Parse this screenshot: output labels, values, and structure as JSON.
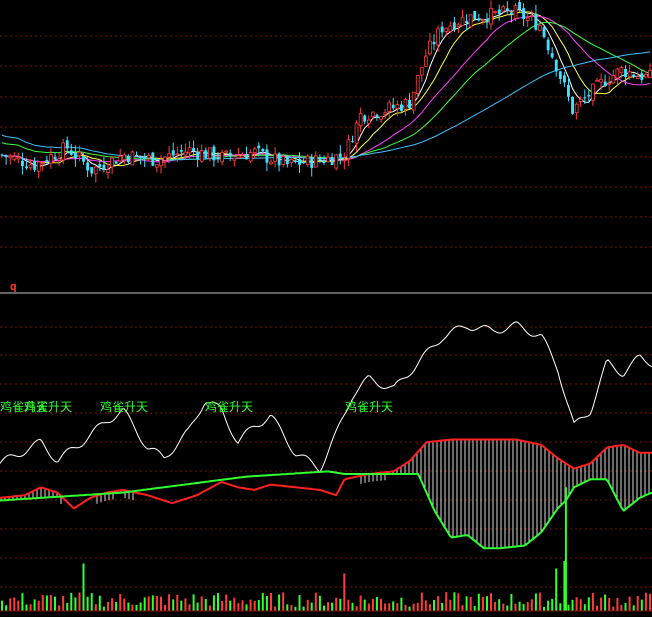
{
  "panel_labels": {
    "indicator_panel": "q"
  },
  "annotations": [
    "鸡雀升天",
    "鸡雀升天",
    "鸡雀升天",
    "鸡雀升天",
    "鸡雀升天"
  ],
  "colors": {
    "background": "#000000",
    "grid": "#7a1010",
    "divider": "#c8c8c8",
    "candle_up": "#ff3c3c",
    "candle_down": "#40e0ff",
    "ma5": "#ffffff",
    "ma10": "#ffff40",
    "ma20": "#ff40ff",
    "ma30": "#40ff40",
    "ma60": "#40c0ff",
    "indicator_white": "#ffffff",
    "indicator_red": "#ff2020",
    "indicator_green": "#30ff30",
    "annotation_text": "#30ff30",
    "volume_up": "#ff3c3c",
    "volume_down": "#30ff30"
  },
  "chart_data": [
    {
      "type": "candlestick",
      "panel": "price",
      "bar_count": 160,
      "series": [
        {
          "name": "",
          "style": "candlestick"
        },
        {
          "name": "",
          "style": "line",
          "color_key": "ma5"
        },
        {
          "name": "",
          "style": "line",
          "color_key": "ma10"
        },
        {
          "name": "",
          "style": "line",
          "color_key": "ma20"
        },
        {
          "name": "",
          "style": "line",
          "color_key": "ma30"
        },
        {
          "name": "",
          "style": "line",
          "color_key": "ma60"
        }
      ],
      "close_trend": [
        [
          0,
          42
        ],
        [
          8,
          38
        ],
        [
          16,
          45
        ],
        [
          22,
          36
        ],
        [
          30,
          42
        ],
        [
          38,
          40
        ],
        [
          46,
          44
        ],
        [
          54,
          41
        ],
        [
          62,
          43
        ],
        [
          70,
          38
        ],
        [
          78,
          40
        ],
        [
          84,
          42
        ],
        [
          88,
          58
        ],
        [
          94,
          60
        ],
        [
          100,
          63
        ],
        [
          104,
          82
        ],
        [
          108,
          93
        ],
        [
          114,
          97
        ],
        [
          120,
          98
        ],
        [
          126,
          99
        ],
        [
          132,
          94
        ],
        [
          136,
          78
        ],
        [
          140,
          60
        ],
        [
          144,
          66
        ],
        [
          148,
          72
        ],
        [
          152,
          76
        ],
        [
          156,
          74
        ],
        [
          159,
          73
        ]
      ],
      "grid": true,
      "legend": "none"
    },
    {
      "type": "line",
      "panel": "indicator",
      "series": [
        {
          "name": "",
          "color_key": "indicator_white",
          "points": [
            [
              0,
              44
            ],
            [
              5,
              48
            ],
            [
              10,
              52
            ],
            [
              14,
              45
            ],
            [
              20,
              52
            ],
            [
              26,
              60
            ],
            [
              30,
              64
            ],
            [
              36,
              50
            ],
            [
              40,
              46
            ],
            [
              46,
              56
            ],
            [
              50,
              68
            ],
            [
              54,
              64
            ],
            [
              58,
              52
            ],
            [
              62,
              58
            ],
            [
              66,
              62
            ],
            [
              72,
              48
            ],
            [
              78,
              42
            ],
            [
              82,
              55
            ],
            [
              86,
              70
            ],
            [
              90,
              76
            ],
            [
              96,
              72
            ],
            [
              102,
              82
            ],
            [
              108,
              92
            ],
            [
              114,
              96
            ],
            [
              120,
              94
            ],
            [
              126,
              96
            ],
            [
              132,
              92
            ],
            [
              136,
              80
            ],
            [
              140,
              58
            ],
            [
              144,
              64
            ],
            [
              148,
              82
            ],
            [
              152,
              78
            ],
            [
              156,
              84
            ],
            [
              159,
              82
            ]
          ]
        },
        {
          "name": "",
          "color_key": "indicator_red",
          "points": [
            [
              0,
              31
            ],
            [
              6,
              32
            ],
            [
              10,
              35
            ],
            [
              14,
              33
            ],
            [
              18,
              27
            ],
            [
              22,
              31
            ],
            [
              26,
              33
            ],
            [
              30,
              34
            ],
            [
              36,
              32
            ],
            [
              42,
              29
            ],
            [
              48,
              32
            ],
            [
              54,
              37
            ],
            [
              58,
              35
            ],
            [
              62,
              34
            ],
            [
              66,
              36
            ],
            [
              72,
              35
            ],
            [
              78,
              34
            ],
            [
              82,
              32
            ],
            [
              84,
              38
            ],
            [
              90,
              40
            ],
            [
              96,
              41
            ],
            [
              100,
              45
            ],
            [
              104,
              52
            ],
            [
              110,
              53
            ],
            [
              118,
              53
            ],
            [
              126,
              53
            ],
            [
              132,
              51
            ],
            [
              136,
              46
            ],
            [
              140,
              42
            ],
            [
              144,
              44
            ],
            [
              148,
              50
            ],
            [
              152,
              51
            ],
            [
              156,
              48
            ],
            [
              159,
              48
            ]
          ]
        },
        {
          "name": "",
          "color_key": "indicator_green",
          "points": [
            [
              0,
              30
            ],
            [
              10,
              31
            ],
            [
              20,
              32
            ],
            [
              30,
              33
            ],
            [
              40,
              35
            ],
            [
              50,
              37
            ],
            [
              60,
              39
            ],
            [
              70,
              40
            ],
            [
              80,
              41
            ],
            [
              84,
              40
            ],
            [
              90,
              40
            ],
            [
              96,
              40
            ],
            [
              102,
              40
            ],
            [
              106,
              26
            ],
            [
              110,
              16
            ],
            [
              114,
              17
            ],
            [
              118,
              12
            ],
            [
              122,
              12
            ],
            [
              128,
              13
            ],
            [
              132,
              18
            ],
            [
              136,
              27
            ],
            [
              138,
              30
            ],
            [
              140,
              35
            ],
            [
              144,
              38
            ],
            [
              148,
              38
            ],
            [
              152,
              26
            ],
            [
              156,
              31
            ],
            [
              159,
              33
            ]
          ]
        }
      ],
      "histogram": {
        "color_key": "indicator_white",
        "between": [
          "indicator_red",
          "indicator_green"
        ]
      },
      "grid": true,
      "legend": "none"
    },
    {
      "type": "bar",
      "panel": "volume",
      "series": [
        {
          "name": "",
          "colors": [
            "volume_up",
            "volume_down"
          ]
        }
      ],
      "notable_bars": [
        [
          20,
          95
        ],
        [
          84,
          75
        ],
        [
          136,
          85
        ],
        [
          138,
          100
        ]
      ],
      "grid": false,
      "legend": "none"
    }
  ]
}
